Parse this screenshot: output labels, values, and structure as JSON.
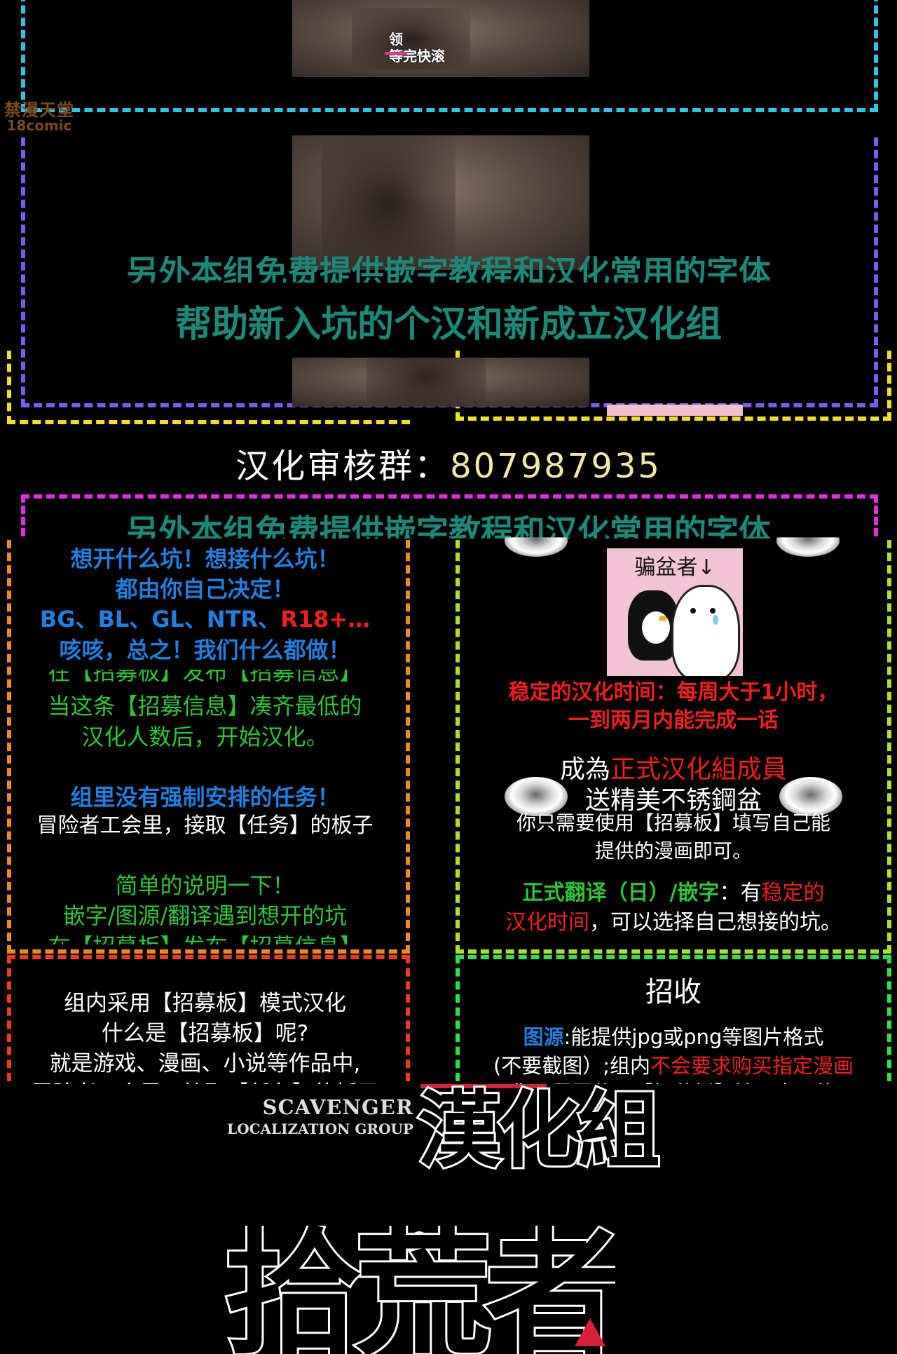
{
  "watermark": {
    "line1": "禁漫天堂",
    "line2": "18comic"
  },
  "photo_top": {
    "subtitle_top": "领",
    "subtitle_main": "等完快滚"
  },
  "banner": {
    "cut_line": "另外本组免费提供嵌字教程和汉化常用的字体",
    "line2": "帮助新入坑的个汉和新成立汉化组"
  },
  "qq_group": {
    "label": "汉化审核群：",
    "number": "807987935"
  },
  "banner_repeat": {
    "cut_line": "另外本组免费提供嵌字教程和汉化常用的字体"
  },
  "left_block": {
    "l1": "想开什么坑！想接什么坑！",
    "l2": "都由你自己决定！",
    "l3a": "BG、BL、GL、NTR、",
    "l3b": "R18+…",
    "l4": "咳咳，总之！我们什么都做！",
    "l5_cut": "在【招募板】发布【招募信息】",
    "l6": "当这条【招募信息】凑齐最低的",
    "l7": "汉化人数后，开始汉化。",
    "l8": "组里没有强制安排的任务！",
    "l9": "冒险者工会里，接取【任务】的板子",
    "l10": "简单的说明一下！",
    "l11": "嵌字/图源/翻译遇到想开的坑",
    "l12_cut": "在【招募板】发布【招募信息】"
  },
  "right_block": {
    "meme_caption": "骗盆者↓",
    "r1": "稳定的汉化时间：每周大于1小时，",
    "r2": "一到两月内能完成一话",
    "r3a": "成為",
    "r3b": "正式汉化組成員",
    "r4": "送精美不锈鋼盆",
    "r5": "你只需要使用【招募板】填写自己能",
    "r6": "提供的漫画即可。",
    "r7a": "正式翻译（日）/嵌字",
    "r7b": "：有",
    "r7c": "稳定的",
    "r8a": "汉化时间",
    "r8b": "，可以选择自己想接的坑。"
  },
  "bottom_left": {
    "b1": "组内采用【招募板】模式汉化",
    "b2": "什么是【招募板】呢?",
    "b3": "就是游戏、漫画、小说等作品中,",
    "b4_cut": "冒险者工会里，接取【任务】的板子"
  },
  "bottom_right": {
    "title": "招收",
    "c1a": "图源",
    "c1b": ":能提供jpg或png等图片格式",
    "c2a": "(不要截图）;组内",
    "c2b": "不会要求购买指定漫画",
    "c3_cut": "你只需要使用【招募板】填写自己能"
  },
  "logo": {
    "en1": "SCAVENGER",
    "en2": "LOCALIZATION GROUP",
    "cn_top": "漢化組",
    "cn_big": "拾荒者"
  },
  "colors": {
    "cyan": "#27c7e6",
    "purple": "#7b5cf0",
    "magenta": "#e02ee0",
    "yellow": "#f2e01a",
    "orange": "#f08a1a",
    "lime": "#b0e020",
    "red": "#f03a1a",
    "green": "#2ee04a",
    "teal": "#1a8a78",
    "blue": "#1e7fe0",
    "text_red": "#f01e1e",
    "text_green": "#2ec43a"
  }
}
